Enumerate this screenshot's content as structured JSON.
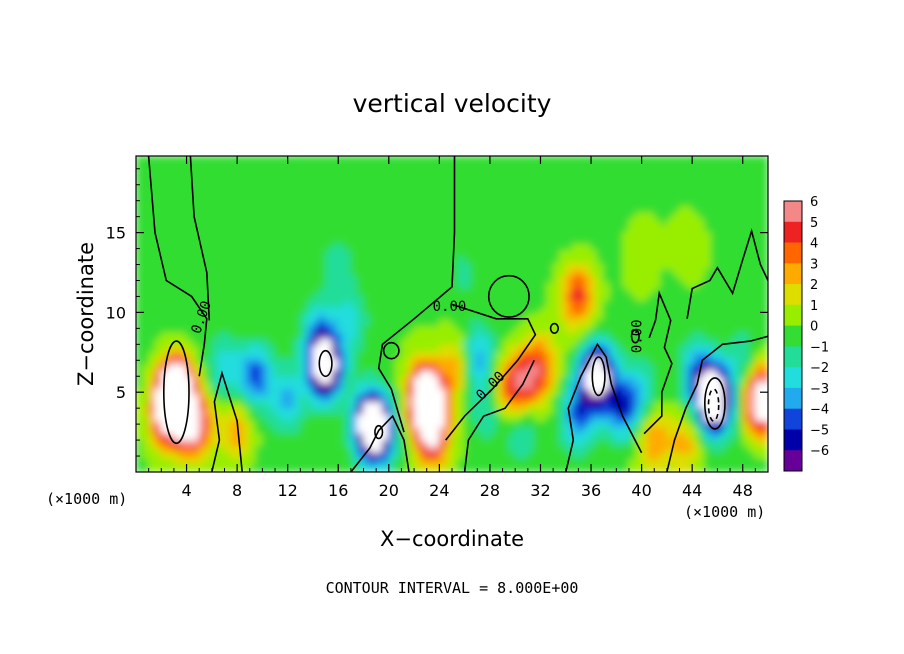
{
  "chart_data": {
    "type": "heatmap",
    "title": "vertical velocity",
    "xlabel": "X−coordinate",
    "ylabel": "Z−coordinate",
    "x_unit_left": "(×1000 m)",
    "x_unit_right": "(×1000 m)",
    "footer": "CONTOUR INTERVAL = 8.000E+00",
    "contour_label": "0.00",
    "xlim": [
      0,
      50
    ],
    "ylim": [
      0,
      19.8
    ],
    "x_ticks": [
      4,
      8,
      12,
      16,
      20,
      24,
      28,
      32,
      36,
      40,
      44,
      48
    ],
    "y_ticks": [
      5,
      10,
      15
    ],
    "colorbar": {
      "labels": [
        "6",
        "5",
        "4",
        "3",
        "2",
        "1",
        "0",
        "−1",
        "−2",
        "−3",
        "−4",
        "−5",
        "−6"
      ],
      "colors": [
        "#f48888",
        "#ee2222",
        "#ff6600",
        "#ffaa00",
        "#dddd00",
        "#99ee00",
        "#33dd33",
        "#22dd99",
        "#22dddd",
        "#22aaee",
        "#1144dd",
        "#0000aa",
        "#660099"
      ]
    },
    "features": [
      {
        "x": 3.2,
        "z": 5.0,
        "w": 13
      },
      {
        "x": 4.6,
        "z": 3.0,
        "w": 7
      },
      {
        "x": 2.5,
        "z": 3.5,
        "w": 6
      },
      {
        "x": 8.0,
        "z": 2.5,
        "w": 3
      },
      {
        "x": 7.0,
        "z": 6.5,
        "w": -2.5
      },
      {
        "x": 9.5,
        "z": 6.0,
        "w": -4.5
      },
      {
        "x": 12.0,
        "z": 4.5,
        "w": -3
      },
      {
        "x": 15.0,
        "z": 6.5,
        "w": -9
      },
      {
        "x": 14.5,
        "z": 8.5,
        "w": -3
      },
      {
        "x": 18.5,
        "z": 3.0,
        "w": -8
      },
      {
        "x": 19.2,
        "z": 2.5,
        "w": -6
      },
      {
        "x": 17.0,
        "z": 9.5,
        "w": -2
      },
      {
        "x": 16.0,
        "z": 13.0,
        "w": -1.5
      },
      {
        "x": 23.0,
        "z": 4.5,
        "w": 13
      },
      {
        "x": 23.5,
        "z": 2.2,
        "w": 6
      },
      {
        "x": 25.5,
        "z": 6.5,
        "w": 3
      },
      {
        "x": 27.0,
        "z": 7.0,
        "w": -3.5
      },
      {
        "x": 28.0,
        "z": 4.0,
        "w": -2.5
      },
      {
        "x": 29.0,
        "z": 5.0,
        "w": 3
      },
      {
        "x": 30.5,
        "z": 5.5,
        "w": 4.5
      },
      {
        "x": 32.0,
        "z": 6.5,
        "w": 4
      },
      {
        "x": 30.5,
        "z": 2.5,
        "w": -2
      },
      {
        "x": 35.0,
        "z": 11.0,
        "w": 4.5
      },
      {
        "x": 36.5,
        "z": 6.0,
        "w": -9
      },
      {
        "x": 35.0,
        "z": 3.5,
        "w": -4
      },
      {
        "x": 38.5,
        "z": 4.0,
        "w": -4.5
      },
      {
        "x": 40.0,
        "z": 5.0,
        "w": -2
      },
      {
        "x": 41.0,
        "z": 2.0,
        "w": 3
      },
      {
        "x": 43.5,
        "z": 1.8,
        "w": 2.5
      },
      {
        "x": 45.8,
        "z": 4.5,
        "w": -11
      },
      {
        "x": 44.5,
        "z": 6.0,
        "w": -4
      },
      {
        "x": 49.5,
        "z": 4.5,
        "w": 9
      },
      {
        "x": 48.0,
        "z": 7.0,
        "w": -2
      },
      {
        "x": 44.0,
        "z": 14.0,
        "w": 1
      },
      {
        "x": 40.0,
        "z": 13.0,
        "w": 0.8
      },
      {
        "x": 26.0,
        "z": 12.5,
        "w": -1
      }
    ]
  }
}
